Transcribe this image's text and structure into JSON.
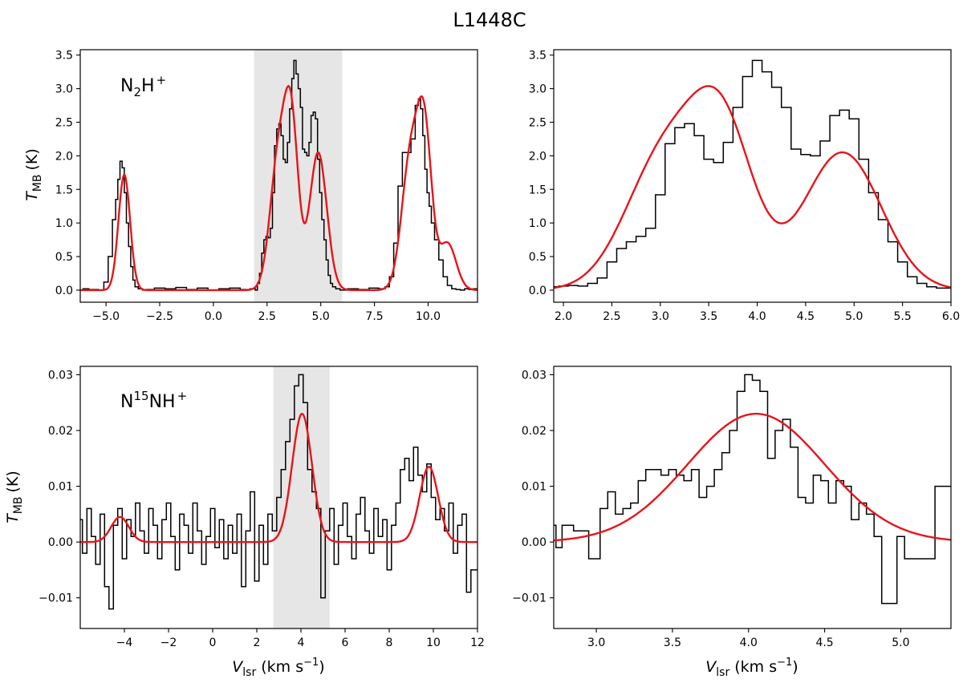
{
  "figure": {
    "title": "L1448C",
    "xlabel_main": "V",
    "xlabel_sub": "lsr",
    "xlabel_unit": "(km s",
    "xlabel_unit_exp": "−1",
    "xlabel_unit_close": ")",
    "ylabel_main": "T",
    "ylabel_sub": "MB",
    "ylabel_unit": "(K)"
  },
  "panel_labels": {
    "n2h": {
      "base": "N",
      "sub": "2",
      "rest": "H",
      "sup": "+"
    },
    "n15nh": {
      "base": "N",
      "sup15": "15",
      "rest": "NH",
      "sup": "+"
    }
  },
  "colors": {
    "data": "#000000",
    "fit": "#e8141a",
    "shade": "#e6e6e6"
  },
  "chart_data": [
    {
      "id": "n2h-full",
      "type": "line",
      "species": "N2H+",
      "xlim": [
        -6.2,
        12.3
      ],
      "ylim": [
        -0.18,
        3.58
      ],
      "xticks": [
        -5.0,
        -2.5,
        0.0,
        2.5,
        5.0,
        7.5,
        10.0
      ],
      "xtick_labels": [
        "−5.0",
        "−2.5",
        "0.0",
        "2.5",
        "5.0",
        "7.5",
        "10.0"
      ],
      "yticks": [
        0.0,
        0.5,
        1.0,
        1.5,
        2.0,
        2.5,
        3.0,
        3.5
      ],
      "ytick_labels": [
        "0.0",
        "0.5",
        "1.0",
        "1.5",
        "2.0",
        "2.5",
        "3.0",
        "3.5"
      ],
      "shaded_range": [
        1.9,
        6.0
      ],
      "observed_step": {
        "x": [
          -6.1,
          -5.5,
          -5.2,
          -5.0,
          -4.8,
          -4.6,
          -4.5,
          -4.4,
          -4.3,
          -4.2,
          -4.1,
          -4.0,
          -3.9,
          -3.8,
          -3.7,
          -3.6,
          -3.4,
          -3.2,
          -3.0,
          -2.5,
          -2.0,
          -1.5,
          -1.0,
          -0.5,
          0.0,
          0.5,
          1.0,
          1.5,
          1.9,
          2.0,
          2.1,
          2.2,
          2.3,
          2.4,
          2.5,
          2.6,
          2.7,
          2.8,
          2.9,
          3.0,
          3.1,
          3.2,
          3.3,
          3.4,
          3.5,
          3.6,
          3.7,
          3.8,
          3.9,
          4.0,
          4.1,
          4.2,
          4.3,
          4.4,
          4.5,
          4.6,
          4.7,
          4.8,
          4.9,
          5.0,
          5.1,
          5.2,
          5.3,
          5.4,
          5.5,
          5.6,
          5.8,
          6.0,
          6.5,
          7.0,
          7.5,
          7.9,
          8.1,
          8.3,
          8.5,
          8.7,
          8.9,
          9.1,
          9.3,
          9.5,
          9.6,
          9.7,
          9.8,
          9.9,
          10.0,
          10.1,
          10.2,
          10.4,
          10.6,
          10.8,
          11.0,
          11.2,
          11.4,
          11.6,
          11.8,
          12.0,
          12.2
        ],
        "y": [
          0.02,
          0.01,
          0.0,
          0.12,
          0.5,
          1.05,
          1.35,
          1.65,
          1.92,
          1.82,
          1.45,
          1.0,
          0.65,
          0.35,
          0.15,
          0.05,
          0.02,
          0.0,
          0.01,
          0.03,
          0.02,
          0.04,
          0.01,
          0.03,
          0.0,
          0.02,
          0.03,
          0.01,
          0.02,
          0.0,
          0.1,
          0.25,
          0.55,
          0.75,
          0.8,
          0.78,
          0.92,
          1.45,
          2.15,
          2.4,
          2.48,
          2.3,
          1.95,
          1.9,
          2.2,
          2.7,
          3.15,
          3.42,
          3.22,
          3.0,
          2.72,
          2.1,
          2.05,
          2.0,
          2.2,
          2.6,
          2.65,
          2.55,
          1.95,
          1.45,
          1.05,
          0.75,
          0.45,
          0.22,
          0.1,
          0.05,
          0.02,
          0.0,
          0.02,
          0.01,
          0.03,
          0.02,
          0.05,
          0.2,
          0.7,
          1.55,
          2.05,
          2.05,
          2.25,
          2.75,
          2.85,
          2.7,
          2.3,
          1.8,
          1.45,
          1.25,
          1.0,
          0.75,
          0.45,
          0.2,
          0.07,
          0.02,
          0.01,
          0.0,
          0.02,
          0.01,
          0.02
        ]
      },
      "fit_components": [
        {
          "amp": 1.72,
          "center": -4.15,
          "sigma": 0.27
        },
        {
          "amp": 2.0,
          "center": 3.05,
          "sigma": 0.4
        },
        {
          "amp": 2.2,
          "center": 3.65,
          "sigma": 0.32
        },
        {
          "amp": 2.05,
          "center": 4.88,
          "sigma": 0.4
        },
        {
          "amp": 2.0,
          "center": 9.2,
          "sigma": 0.42
        },
        {
          "amp": 2.1,
          "center": 9.85,
          "sigma": 0.33
        },
        {
          "amp": 0.7,
          "center": 10.9,
          "sigma": 0.4
        }
      ]
    },
    {
      "id": "n2h-zoom",
      "type": "line",
      "species": "N2H+",
      "xlim": [
        1.9,
        6.0
      ],
      "ylim": [
        -0.18,
        3.58
      ],
      "xticks": [
        2.0,
        2.5,
        3.0,
        3.5,
        4.0,
        4.5,
        5.0,
        5.5,
        6.0
      ],
      "xtick_labels": [
        "2.0",
        "2.5",
        "3.0",
        "3.5",
        "4.0",
        "4.5",
        "5.0",
        "5.5",
        "6.0"
      ],
      "yticks": [
        0.0,
        0.5,
        1.0,
        1.5,
        2.0,
        2.5,
        3.0,
        3.5
      ],
      "ytick_labels": [
        "0.0",
        "0.5",
        "1.0",
        "1.5",
        "2.0",
        "2.5",
        "3.0",
        "3.5"
      ],
      "observed_step": {
        "x": [
          1.9,
          2.0,
          2.1,
          2.2,
          2.3,
          2.4,
          2.5,
          2.6,
          2.7,
          2.8,
          2.9,
          3.0,
          3.1,
          3.2,
          3.3,
          3.4,
          3.5,
          3.6,
          3.7,
          3.8,
          3.9,
          4.0,
          4.1,
          4.2,
          4.3,
          4.4,
          4.5,
          4.6,
          4.7,
          4.8,
          4.9,
          5.0,
          5.1,
          5.2,
          5.3,
          5.4,
          5.5,
          5.6,
          5.7,
          5.8,
          5.9
        ],
        "y": [
          0.05,
          0.06,
          0.07,
          0.06,
          0.1,
          0.18,
          0.42,
          0.62,
          0.72,
          0.8,
          0.92,
          1.42,
          2.18,
          2.42,
          2.48,
          2.3,
          1.95,
          1.9,
          2.2,
          2.72,
          3.18,
          3.42,
          3.25,
          3.02,
          2.72,
          2.1,
          2.02,
          2.0,
          2.22,
          2.6,
          2.68,
          2.55,
          1.95,
          1.45,
          1.05,
          0.72,
          0.42,
          0.2,
          0.1,
          0.05,
          0.03
        ]
      },
      "fit_components": [
        {
          "amp": 2.0,
          "center": 3.05,
          "sigma": 0.4
        },
        {
          "amp": 2.2,
          "center": 3.65,
          "sigma": 0.32
        },
        {
          "amp": 2.05,
          "center": 4.88,
          "sigma": 0.4
        }
      ]
    },
    {
      "id": "n15nh-full",
      "type": "line",
      "species": "N15NH+",
      "xlim": [
        -6.0,
        12.0
      ],
      "ylim": [
        -0.0155,
        0.0315
      ],
      "xticks": [
        -4,
        -2,
        0,
        2,
        4,
        6,
        8,
        10,
        12
      ],
      "xtick_labels": [
        "−4",
        "−2",
        "0",
        "2",
        "4",
        "6",
        "8",
        "10",
        "12"
      ],
      "yticks": [
        -0.01,
        0.0,
        0.01,
        0.02,
        0.03
      ],
      "ytick_labels": [
        "−0.01",
        "0.00",
        "0.01",
        "0.02",
        "0.03"
      ],
      "shaded_range": [
        2.75,
        5.3
      ],
      "observed_step": {
        "x": [
          -6.0,
          -5.8,
          -5.6,
          -5.4,
          -5.2,
          -5.0,
          -4.8,
          -4.6,
          -4.4,
          -4.2,
          -4.0,
          -3.8,
          -3.6,
          -3.4,
          -3.2,
          -3.0,
          -2.8,
          -2.6,
          -2.4,
          -2.2,
          -2.0,
          -1.8,
          -1.6,
          -1.4,
          -1.2,
          -1.0,
          -0.8,
          -0.6,
          -0.4,
          -0.2,
          0.0,
          0.2,
          0.4,
          0.6,
          0.8,
          1.0,
          1.2,
          1.4,
          1.6,
          1.8,
          2.0,
          2.2,
          2.4,
          2.6,
          2.8,
          3.0,
          3.2,
          3.4,
          3.6,
          3.8,
          4.0,
          4.2,
          4.4,
          4.6,
          4.8,
          5.0,
          5.2,
          5.4,
          5.6,
          5.8,
          6.0,
          6.2,
          6.4,
          6.6,
          6.8,
          7.0,
          7.2,
          7.4,
          7.6,
          7.8,
          8.0,
          8.2,
          8.4,
          8.6,
          8.8,
          9.0,
          9.2,
          9.4,
          9.6,
          9.8,
          10.0,
          10.2,
          10.4,
          10.6,
          10.8,
          11.0,
          11.2,
          11.4,
          11.6,
          11.8
        ],
        "y": [
          0.004,
          -0.002,
          0.006,
          0.001,
          -0.004,
          0.005,
          -0.008,
          -0.012,
          0.003,
          0.006,
          -0.003,
          0.004,
          0.001,
          0.007,
          0.002,
          -0.002,
          0.006,
          0.003,
          -0.003,
          0.004,
          0.007,
          0.001,
          -0.005,
          0.005,
          0.003,
          -0.002,
          0.007,
          0.002,
          -0.004,
          0.001,
          0.006,
          -0.001,
          0.004,
          -0.003,
          0.003,
          -0.002,
          0.005,
          -0.008,
          0.002,
          0.009,
          -0.007,
          0.003,
          -0.004,
          0.005,
          0.002,
          0.008,
          0.013,
          0.018,
          0.022,
          0.028,
          0.03,
          0.025,
          0.013,
          0.009,
          0.006,
          -0.01,
          0.002,
          0.006,
          -0.004,
          0.003,
          0.007,
          0.001,
          -0.003,
          0.005,
          0.008,
          0.002,
          -0.002,
          0.006,
          0.001,
          0.004,
          -0.005,
          0.003,
          0.007,
          0.013,
          0.015,
          0.011,
          0.017,
          0.012,
          0.009,
          0.014,
          0.008,
          0.004,
          0.006,
          0.002,
          0.007,
          -0.002,
          0.003,
          0.005,
          -0.009,
          -0.005
        ]
      },
      "fit_components": [
        {
          "amp": 0.0045,
          "center": -4.2,
          "sigma": 0.4
        },
        {
          "amp": 0.023,
          "center": 4.05,
          "sigma": 0.45
        },
        {
          "amp": 0.0135,
          "center": 9.8,
          "sigma": 0.42
        }
      ]
    },
    {
      "id": "n15nh-zoom",
      "type": "line",
      "species": "N15NH+",
      "xlim": [
        2.72,
        5.33
      ],
      "ylim": [
        -0.0155,
        0.0315
      ],
      "xticks": [
        3.0,
        3.5,
        4.0,
        4.5,
        5.0
      ],
      "xtick_labels": [
        "3.0",
        "3.5",
        "4.0",
        "4.5",
        "5.0"
      ],
      "yticks": [
        -0.01,
        0.0,
        0.01,
        0.02,
        0.03
      ],
      "ytick_labels": [
        "−0.01",
        "0.00",
        "0.01",
        "0.02",
        "0.03"
      ],
      "observed_step": {
        "x": [
          2.72,
          2.75,
          2.8,
          2.9,
          3.0,
          3.05,
          3.1,
          3.15,
          3.2,
          3.25,
          3.3,
          3.35,
          3.4,
          3.45,
          3.5,
          3.55,
          3.6,
          3.65,
          3.7,
          3.75,
          3.8,
          3.85,
          3.9,
          3.95,
          4.0,
          4.05,
          4.1,
          4.15,
          4.2,
          4.25,
          4.3,
          4.35,
          4.4,
          4.45,
          4.5,
          4.55,
          4.6,
          4.65,
          4.7,
          4.75,
          4.8,
          4.85,
          4.9,
          4.95,
          5.0,
          5.05,
          5.1,
          5.15,
          5.2,
          5.25,
          5.3
        ],
        "y": [
          0.003,
          -0.001,
          0.003,
          0.002,
          -0.003,
          0.006,
          0.009,
          0.005,
          0.006,
          0.007,
          0.011,
          0.013,
          0.013,
          0.012,
          0.013,
          0.012,
          0.011,
          0.013,
          0.008,
          0.01,
          0.013,
          0.016,
          0.02,
          0.027,
          0.03,
          0.029,
          0.027,
          0.015,
          0.02,
          0.022,
          0.017,
          0.008,
          0.007,
          0.012,
          0.011,
          0.007,
          0.011,
          0.01,
          0.004,
          0.007,
          0.005,
          0.001,
          -0.011,
          -0.011,
          0.001,
          -0.003,
          -0.003,
          -0.003,
          -0.003,
          0.01,
          0.01
        ]
      },
      "fit_components": [
        {
          "amp": 0.023,
          "center": 4.05,
          "sigma": 0.45
        }
      ]
    }
  ]
}
